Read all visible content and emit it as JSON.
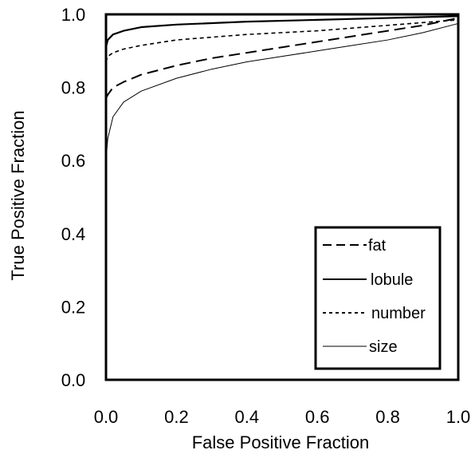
{
  "chart_data": {
    "type": "line",
    "title": "",
    "xlabel": "False Positive Fraction",
    "ylabel": "True Positive Fraction",
    "xlim": [
      0.0,
      1.0
    ],
    "ylim": [
      0.0,
      1.0
    ],
    "x_ticks": [
      "0.0",
      "0.2",
      "0.4",
      "0.6",
      "0.8",
      "1.0"
    ],
    "y_ticks": [
      "0.0",
      "0.2",
      "0.4",
      "0.6",
      "0.8",
      "1.0"
    ],
    "grid": false,
    "legend_position": "bottom-right",
    "series": [
      {
        "name": "fat",
        "line_style": "dashed",
        "color": "#000000",
        "points": [
          [
            0.0,
            0.77
          ],
          [
            0.005,
            0.78
          ],
          [
            0.02,
            0.8
          ],
          [
            0.05,
            0.815
          ],
          [
            0.1,
            0.835
          ],
          [
            0.2,
            0.86
          ],
          [
            0.3,
            0.88
          ],
          [
            0.4,
            0.895
          ],
          [
            0.5,
            0.91
          ],
          [
            0.6,
            0.925
          ],
          [
            0.7,
            0.94
          ],
          [
            0.8,
            0.955
          ],
          [
            0.9,
            0.97
          ],
          [
            1.0,
            0.99
          ]
        ]
      },
      {
        "name": "lobule",
        "line_style": "solid",
        "color": "#000000",
        "points": [
          [
            0.0,
            0.91
          ],
          [
            0.005,
            0.93
          ],
          [
            0.02,
            0.945
          ],
          [
            0.05,
            0.955
          ],
          [
            0.1,
            0.965
          ],
          [
            0.2,
            0.972
          ],
          [
            0.4,
            0.98
          ],
          [
            0.6,
            0.985
          ],
          [
            0.8,
            0.99
          ],
          [
            1.0,
            0.995
          ]
        ]
      },
      {
        "name": "number",
        "line_style": "dotted",
        "color": "#000000",
        "points": [
          [
            0.0,
            0.87
          ],
          [
            0.005,
            0.885
          ],
          [
            0.02,
            0.895
          ],
          [
            0.05,
            0.905
          ],
          [
            0.1,
            0.915
          ],
          [
            0.2,
            0.93
          ],
          [
            0.4,
            0.945
          ],
          [
            0.6,
            0.955
          ],
          [
            0.8,
            0.97
          ],
          [
            1.0,
            0.985
          ]
        ]
      },
      {
        "name": "size",
        "line_style": "solid-thin",
        "color": "#000000",
        "points": [
          [
            0.0,
            0.6
          ],
          [
            0.005,
            0.66
          ],
          [
            0.02,
            0.72
          ],
          [
            0.05,
            0.76
          ],
          [
            0.1,
            0.79
          ],
          [
            0.2,
            0.825
          ],
          [
            0.3,
            0.85
          ],
          [
            0.4,
            0.87
          ],
          [
            0.5,
            0.885
          ],
          [
            0.6,
            0.9
          ],
          [
            0.7,
            0.915
          ],
          [
            0.8,
            0.93
          ],
          [
            0.9,
            0.95
          ],
          [
            1.0,
            0.975
          ]
        ]
      }
    ]
  }
}
